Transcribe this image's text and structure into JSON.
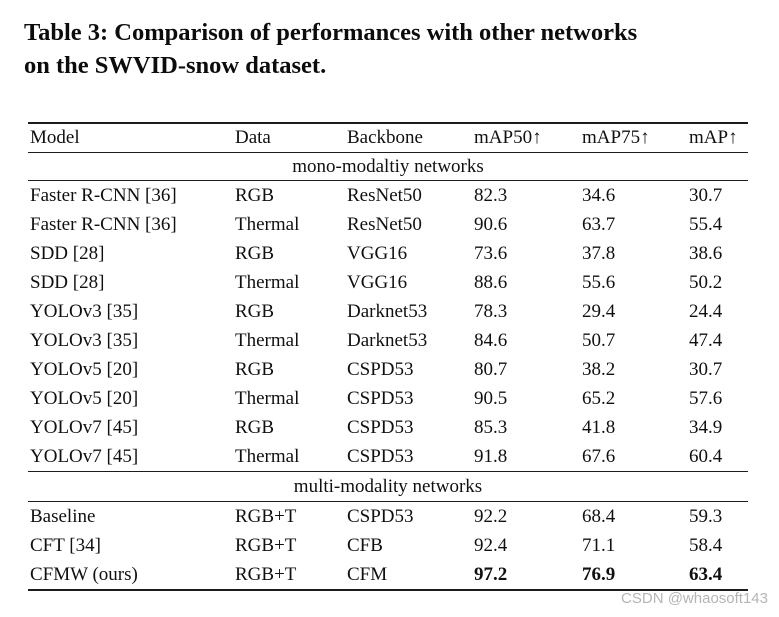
{
  "title": {
    "line1": "Table 3: Comparison of performances with other networks",
    "line2": "on the SWVID-snow dataset."
  },
  "table": {
    "columns": [
      "Model",
      "Data",
      "Backbone",
      "mAP50↑",
      "mAP75↑",
      "mAP↑"
    ],
    "sections": [
      {
        "label": "mono-modaltiy networks",
        "rows": [
          {
            "cells": [
              "Faster R-CNN [36]",
              "RGB",
              "ResNet50",
              "82.3",
              "34.6",
              "30.7"
            ]
          },
          {
            "cells": [
              "Faster R-CNN [36]",
              "Thermal",
              "ResNet50",
              "90.6",
              "63.7",
              "55.4"
            ]
          },
          {
            "cells": [
              "SDD [28]",
              "RGB",
              "VGG16",
              "73.6",
              "37.8",
              "38.6"
            ]
          },
          {
            "cells": [
              "SDD [28]",
              "Thermal",
              "VGG16",
              "88.6",
              "55.6",
              "50.2"
            ]
          },
          {
            "cells": [
              "YOLOv3 [35]",
              "RGB",
              "Darknet53",
              "78.3",
              "29.4",
              "24.4"
            ]
          },
          {
            "cells": [
              "YOLOv3 [35]",
              "Thermal",
              "Darknet53",
              "84.6",
              "50.7",
              "47.4"
            ]
          },
          {
            "cells": [
              "YOLOv5 [20]",
              "RGB",
              "CSPD53",
              "80.7",
              "38.2",
              "30.7"
            ]
          },
          {
            "cells": [
              "YOLOv5 [20]",
              "Thermal",
              "CSPD53",
              "90.5",
              "65.2",
              "57.6"
            ]
          },
          {
            "cells": [
              "YOLOv7 [45]",
              "RGB",
              "CSPD53",
              "85.3",
              "41.8",
              "34.9"
            ]
          },
          {
            "cells": [
              "YOLOv7 [45]",
              "Thermal",
              "CSPD53",
              "91.8",
              "67.6",
              "60.4"
            ]
          }
        ]
      },
      {
        "label": "multi-modality networks",
        "rows": [
          {
            "cells": [
              "Baseline",
              "RGB+T",
              "CSPD53",
              "92.2",
              "68.4",
              "59.3"
            ]
          },
          {
            "cells": [
              "CFT [34]",
              "RGB+T",
              "CFB",
              "92.4",
              "71.1",
              "58.4"
            ]
          },
          {
            "cells": [
              "CFMW (ours)",
              "RGB+T",
              "CFM",
              "97.2",
              "76.9",
              "63.4"
            ]
          }
        ]
      }
    ]
  },
  "watermark": "CSDN @whaosoft143",
  "colors": {
    "text": "#0f0f0f",
    "rule": "#1c1c1c",
    "watermark": "#b5b5b5",
    "background": "#ffffff"
  }
}
